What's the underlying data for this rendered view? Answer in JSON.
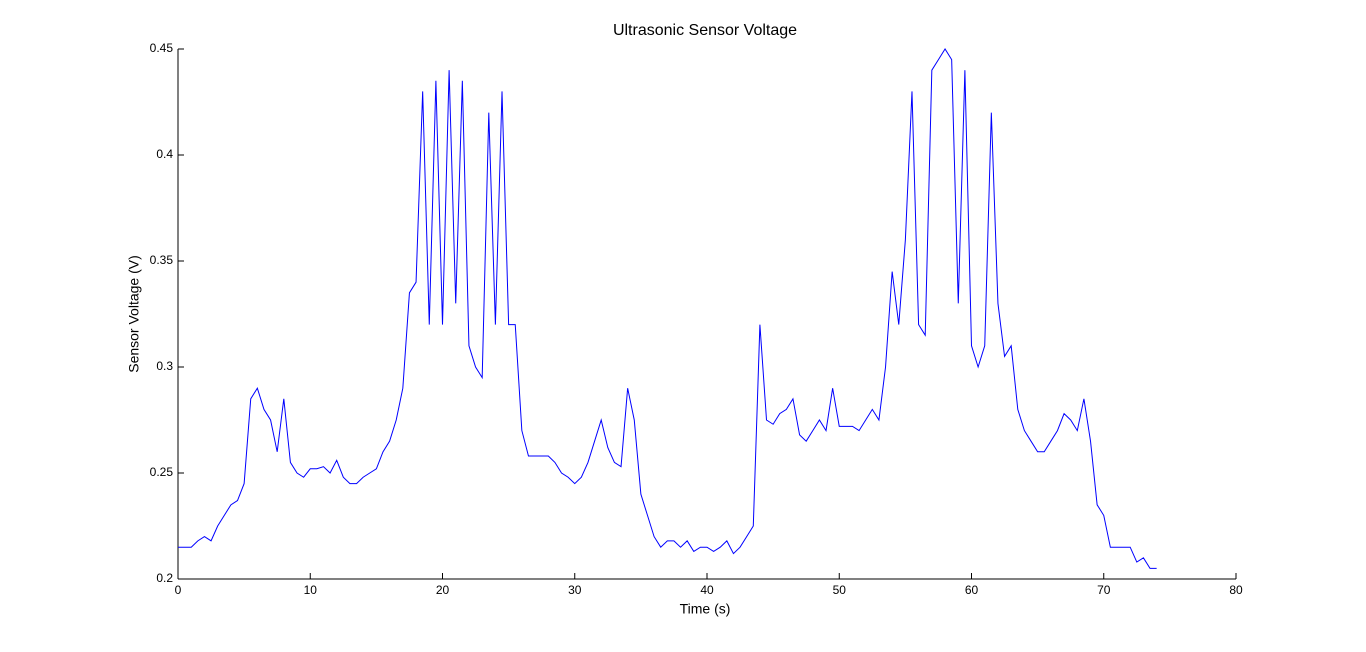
{
  "chart_data": {
    "type": "line",
    "title": "Ultrasonic Sensor Voltage",
    "xlabel": "Time (s)",
    "ylabel": "Sensor Voltage (V)",
    "x": [
      0,
      0.5,
      1,
      1.5,
      2,
      2.5,
      3,
      3.5,
      4,
      4.5,
      5,
      5.5,
      6,
      6.5,
      7,
      7.5,
      8,
      8.5,
      9,
      9.5,
      10,
      10.5,
      11,
      11.5,
      12,
      12.5,
      13,
      13.5,
      14,
      14.5,
      15,
      15.5,
      16,
      16.5,
      17,
      17.5,
      18,
      18.5,
      19,
      19.5,
      20,
      20.5,
      21,
      21.5,
      22,
      22.5,
      23,
      23.5,
      24,
      24.5,
      25,
      25.5,
      26,
      26.5,
      27,
      27.5,
      28,
      28.5,
      29,
      29.5,
      30,
      30.5,
      31,
      31.5,
      32,
      32.5,
      33,
      33.5,
      34,
      34.5,
      35,
      35.5,
      36,
      36.5,
      37,
      37.5,
      38,
      38.5,
      39,
      39.5,
      40,
      40.5,
      41,
      41.5,
      42,
      42.5,
      43,
      43.5,
      44,
      44.5,
      45,
      45.5,
      46,
      46.5,
      47,
      47.5,
      48,
      48.5,
      49,
      49.5,
      50,
      50.5,
      51,
      51.5,
      52,
      52.5,
      53,
      53.5,
      54,
      54.5,
      55,
      55.5,
      56,
      56.5,
      57,
      57.5,
      58,
      58.5,
      59,
      59.5,
      60,
      60.5,
      61,
      61.5,
      62,
      62.5,
      63,
      63.5,
      64,
      64.5,
      65,
      65.5,
      66,
      66.5,
      67,
      67.5,
      68,
      68.5,
      69,
      69.5,
      70,
      70.5,
      71,
      71.5,
      72,
      72.5,
      73,
      73.5,
      74
    ],
    "series": [
      {
        "name": "Sensor Voltage",
        "color": "#0000ff",
        "values": [
          0.215,
          0.215,
          0.215,
          0.218,
          0.22,
          0.218,
          0.225,
          0.23,
          0.235,
          0.237,
          0.245,
          0.285,
          0.29,
          0.28,
          0.275,
          0.26,
          0.285,
          0.255,
          0.25,
          0.248,
          0.252,
          0.252,
          0.253,
          0.25,
          0.256,
          0.248,
          0.245,
          0.245,
          0.248,
          0.25,
          0.252,
          0.26,
          0.265,
          0.275,
          0.29,
          0.335,
          0.34,
          0.43,
          0.32,
          0.435,
          0.32,
          0.44,
          0.33,
          0.435,
          0.31,
          0.3,
          0.295,
          0.42,
          0.32,
          0.43,
          0.32,
          0.32,
          0.27,
          0.258,
          0.258,
          0.258,
          0.258,
          0.255,
          0.25,
          0.248,
          0.245,
          0.248,
          0.255,
          0.265,
          0.275,
          0.262,
          0.255,
          0.253,
          0.29,
          0.275,
          0.24,
          0.23,
          0.22,
          0.215,
          0.218,
          0.218,
          0.215,
          0.218,
          0.213,
          0.215,
          0.215,
          0.213,
          0.215,
          0.218,
          0.212,
          0.215,
          0.22,
          0.225,
          0.32,
          0.275,
          0.273,
          0.278,
          0.28,
          0.285,
          0.268,
          0.265,
          0.27,
          0.275,
          0.27,
          0.29,
          0.272,
          0.272,
          0.272,
          0.27,
          0.275,
          0.28,
          0.275,
          0.3,
          0.345,
          0.32,
          0.36,
          0.43,
          0.32,
          0.315,
          0.44,
          0.445,
          0.45,
          0.445,
          0.33,
          0.44,
          0.31,
          0.3,
          0.31,
          0.42,
          0.33,
          0.305,
          0.31,
          0.28,
          0.27,
          0.265,
          0.26,
          0.26,
          0.265,
          0.27,
          0.278,
          0.275,
          0.27,
          0.285,
          0.265,
          0.235,
          0.23,
          0.215,
          0.215,
          0.215,
          0.215,
          0.208,
          0.21,
          0.205,
          0.205
        ]
      }
    ],
    "xlim": [
      0,
      80
    ],
    "xticks": [
      0,
      10,
      20,
      30,
      40,
      50,
      60,
      70,
      80
    ],
    "ylim": [
      0.2,
      0.45
    ],
    "yticks": [
      0.2,
      0.25,
      0.3,
      0.35,
      0.4,
      0.45
    ]
  }
}
